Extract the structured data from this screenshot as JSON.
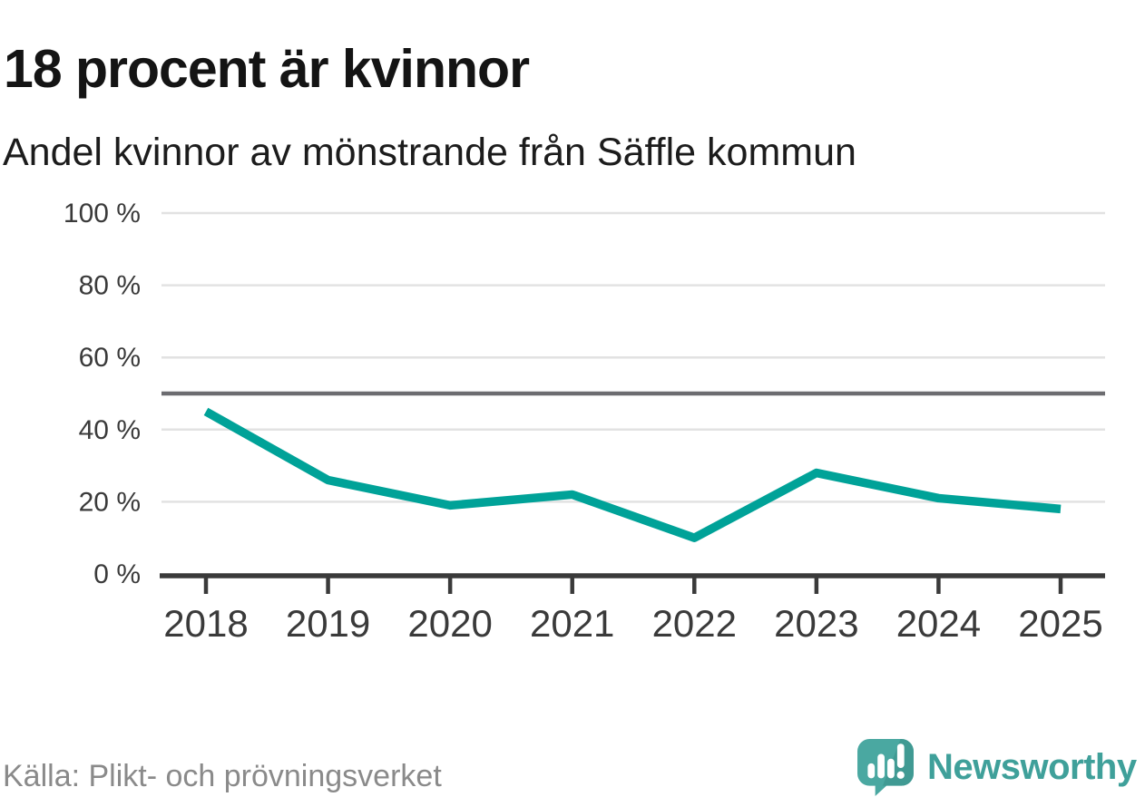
{
  "header": {
    "title": "18 procent är kvinnor",
    "subtitle": "Andel kvinnor av mönstrande från Säffle kommun"
  },
  "footer": {
    "source": "Källa: Plikt- och prövningsverket",
    "brand_name": "Newsworthy"
  },
  "colors": {
    "line": "#00a298",
    "reference": "#6c6c70",
    "grid": "#e2e2e2",
    "axis": "#3a3a3a",
    "tick_text": "#3a3a3a",
    "brand": "#3fa09a",
    "source_text": "#8a8a8a"
  },
  "chart_data": {
    "type": "line",
    "title": "18 procent är kvinnor",
    "subtitle": "Andel kvinnor av mönstrande från Säffle kommun",
    "categories": [
      "2018",
      "2019",
      "2020",
      "2021",
      "2022",
      "2023",
      "2024",
      "2025"
    ],
    "series": [
      {
        "name": "Andel kvinnor av mönstrande från Säffle kommun",
        "values": [
          45,
          26,
          19,
          22,
          10,
          28,
          21,
          18
        ]
      }
    ],
    "unit": "%",
    "ylim": [
      0,
      100
    ],
    "yticks": [
      {
        "value": 0,
        "label": "0 %"
      },
      {
        "value": 20,
        "label": "20 %"
      },
      {
        "value": 40,
        "label": "40 %"
      },
      {
        "value": 60,
        "label": "60 %"
      },
      {
        "value": 80,
        "label": "80 %"
      },
      {
        "value": 100,
        "label": "100 %"
      }
    ],
    "reference_line": 50,
    "grid": true,
    "legend": "none"
  }
}
